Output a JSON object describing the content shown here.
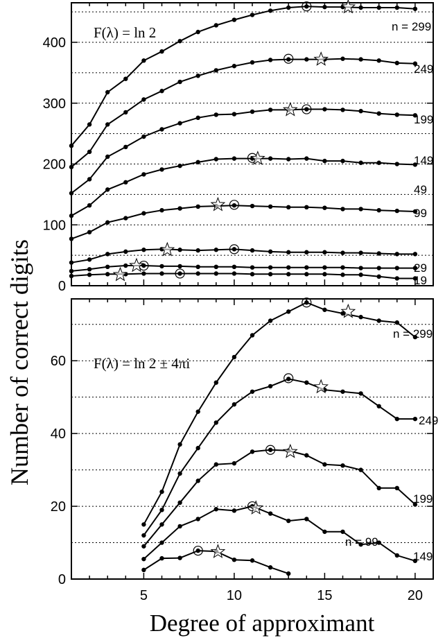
{
  "figure": {
    "xlabel": "Degree of approximant",
    "ylabel": "Number of correct digits"
  },
  "chart_data": [
    {
      "type": "line",
      "panel": "top",
      "title": "F(λ) = ln 2",
      "xlim": [
        1,
        21
      ],
      "ylim": [
        0,
        465
      ],
      "x_ticks": [
        5,
        10,
        15,
        20
      ],
      "y_ticks": [
        0,
        100,
        200,
        300,
        400
      ],
      "grid": "horizontal dotted",
      "series": [
        {
          "name": "n = 299",
          "x": [
            1,
            2,
            3,
            4,
            5,
            6,
            7,
            8,
            9,
            10,
            11,
            12,
            13,
            14,
            15,
            16,
            17,
            18,
            19,
            20
          ],
          "y": [
            230,
            265,
            318,
            340,
            370,
            385,
            402,
            417,
            428,
            437,
            445,
            452,
            457,
            459,
            458,
            458,
            457,
            457,
            457,
            455
          ],
          "circle": [
            14,
            459
          ],
          "star": [
            16.3,
            458
          ]
        },
        {
          "name": "249",
          "x": [
            1,
            2,
            3,
            4,
            5,
            6,
            7,
            8,
            9,
            10,
            11,
            12,
            13,
            14,
            15,
            16,
            17,
            18,
            19,
            20
          ],
          "y": [
            195,
            220,
            265,
            285,
            306,
            320,
            335,
            345,
            354,
            361,
            367,
            371,
            372,
            372,
            372,
            373,
            372,
            370,
            366,
            365
          ],
          "circle": [
            13,
            373
          ],
          "star": [
            14.8,
            372
          ]
        },
        {
          "name": "199",
          "x": [
            1,
            2,
            3,
            4,
            5,
            6,
            7,
            8,
            9,
            10,
            11,
            12,
            13,
            14,
            15,
            16,
            17,
            18,
            19,
            20
          ],
          "y": [
            152,
            175,
            212,
            228,
            245,
            257,
            267,
            276,
            281,
            282,
            286,
            289,
            289,
            290,
            290,
            289,
            287,
            283,
            281,
            280
          ],
          "circle": [
            14,
            290
          ],
          "star": [
            13.1,
            289
          ]
        },
        {
          "name": "149",
          "x": [
            1,
            2,
            3,
            4,
            5,
            6,
            7,
            8,
            9,
            10,
            11,
            12,
            13,
            14,
            15,
            16,
            17,
            18,
            19,
            20
          ],
          "y": [
            115,
            132,
            158,
            170,
            183,
            191,
            197,
            203,
            208,
            209,
            209,
            209,
            208,
            209,
            205,
            205,
            202,
            202,
            200,
            199
          ],
          "circle": [
            11,
            210
          ],
          "star": [
            11.3,
            209
          ]
        },
        {
          "name": "99",
          "x": [
            1,
            2,
            3,
            4,
            5,
            6,
            7,
            8,
            9,
            10,
            11,
            12,
            13,
            14,
            15,
            16,
            17,
            18,
            19,
            20
          ],
          "y": [
            77,
            88,
            104,
            111,
            119,
            124,
            127,
            130,
            131,
            132,
            131,
            130,
            129,
            129,
            128,
            126,
            126,
            124,
            123,
            122
          ],
          "circle": [
            10,
            133
          ],
          "star": [
            9.1,
            133
          ]
        },
        {
          "name": "49",
          "x": [
            1,
            2,
            3,
            4,
            5,
            6,
            7,
            8,
            9,
            10,
            11,
            12,
            13,
            14,
            15,
            16,
            17,
            18,
            19,
            20
          ],
          "y": [
            38,
            43,
            52,
            56,
            59,
            60,
            59,
            58,
            59,
            60,
            58,
            56,
            55,
            55,
            55,
            54,
            54,
            53,
            52,
            52
          ],
          "circle": [
            10,
            60
          ],
          "star": [
            6.3,
            59
          ]
        },
        {
          "name": "29",
          "x": [
            1,
            2,
            3,
            4,
            5,
            6,
            7,
            8,
            9,
            10,
            11,
            12,
            13,
            14,
            15,
            16,
            17,
            18,
            19,
            20
          ],
          "y": [
            24,
            27,
            31,
            33,
            33,
            32,
            32,
            31,
            31,
            31,
            30,
            30,
            30,
            30,
            30,
            30,
            29,
            29,
            29,
            29
          ],
          "circle": [
            5,
            33
          ],
          "star": [
            4.6,
            33
          ]
        },
        {
          "name": "19",
          "x": [
            1,
            2,
            3,
            4,
            5,
            6,
            7,
            8,
            9,
            10,
            11,
            12,
            13,
            14,
            15,
            16,
            17,
            18,
            19,
            20
          ],
          "y": [
            16,
            18,
            19,
            19,
            20,
            20,
            20,
            20,
            20,
            20,
            19,
            19,
            19,
            19,
            19,
            18,
            18,
            15,
            12,
            12
          ],
          "circle": [
            7,
            20
          ],
          "star": [
            3.7,
            18
          ]
        }
      ]
    },
    {
      "type": "line",
      "panel": "bottom",
      "title": "F(λ) = ln 2 ± 4πi",
      "xlim": [
        1,
        21
      ],
      "ylim": [
        0,
        77
      ],
      "x_ticks": [
        5,
        10,
        15,
        20
      ],
      "x_tick_labels": [
        "5",
        "10",
        "15",
        "20"
      ],
      "y_ticks": [
        0,
        20,
        40,
        60
      ],
      "grid": "horizontal dotted",
      "series": [
        {
          "name": "n = 299",
          "x": [
            5,
            6,
            7,
            8,
            9,
            10,
            11,
            12,
            13,
            14,
            15,
            16,
            17,
            18,
            19,
            20
          ],
          "y": [
            15,
            24,
            37,
            46,
            54,
            61,
            67,
            71,
            73.5,
            76,
            74,
            73,
            72,
            71,
            70.5,
            66.5
          ],
          "circle": [
            14,
            76
          ],
          "star": [
            16.3,
            73.5
          ]
        },
        {
          "name": "249",
          "x": [
            5,
            6,
            7,
            8,
            9,
            10,
            11,
            12,
            13,
            14,
            15,
            16,
            17,
            18,
            19,
            20
          ],
          "y": [
            12,
            19,
            29,
            36,
            43,
            48,
            51.5,
            53,
            55,
            54,
            52,
            51.5,
            51,
            47.5,
            44,
            44
          ],
          "circle": [
            13,
            55.2
          ],
          "star": [
            14.8,
            52.8
          ]
        },
        {
          "name": "199",
          "x": [
            5,
            6,
            7,
            8,
            9,
            10,
            11,
            12,
            13,
            14,
            15,
            16,
            17,
            18,
            19,
            20
          ],
          "y": [
            9,
            15,
            21,
            27,
            31.5,
            31.8,
            35,
            35.5,
            35.3,
            34,
            31.5,
            31.2,
            30,
            25,
            25,
            20.5
          ],
          "circle": [
            12,
            35.5
          ],
          "star": [
            13.1,
            35
          ]
        },
        {
          "name": "149",
          "x": [
            5,
            6,
            7,
            8,
            9,
            10,
            11,
            12,
            13,
            14,
            15,
            16,
            17,
            18,
            19,
            20
          ],
          "y": [
            5.5,
            10,
            14.5,
            16.5,
            19.2,
            18.8,
            20,
            18,
            16,
            16.5,
            13,
            13,
            9.5,
            10,
            6.5,
            5
          ],
          "circle": [
            11,
            20
          ],
          "star": [
            11.2,
            19.5
          ]
        },
        {
          "name": "n = 99",
          "x": [
            5,
            6,
            7,
            8,
            9,
            10,
            11,
            12,
            13
          ],
          "y": [
            2.5,
            5.7,
            5.8,
            7.8,
            7.6,
            5.3,
            5.1,
            3.2,
            1.5
          ],
          "circle": [
            8,
            7.8
          ],
          "star": [
            9.1,
            7.5
          ]
        }
      ]
    }
  ]
}
